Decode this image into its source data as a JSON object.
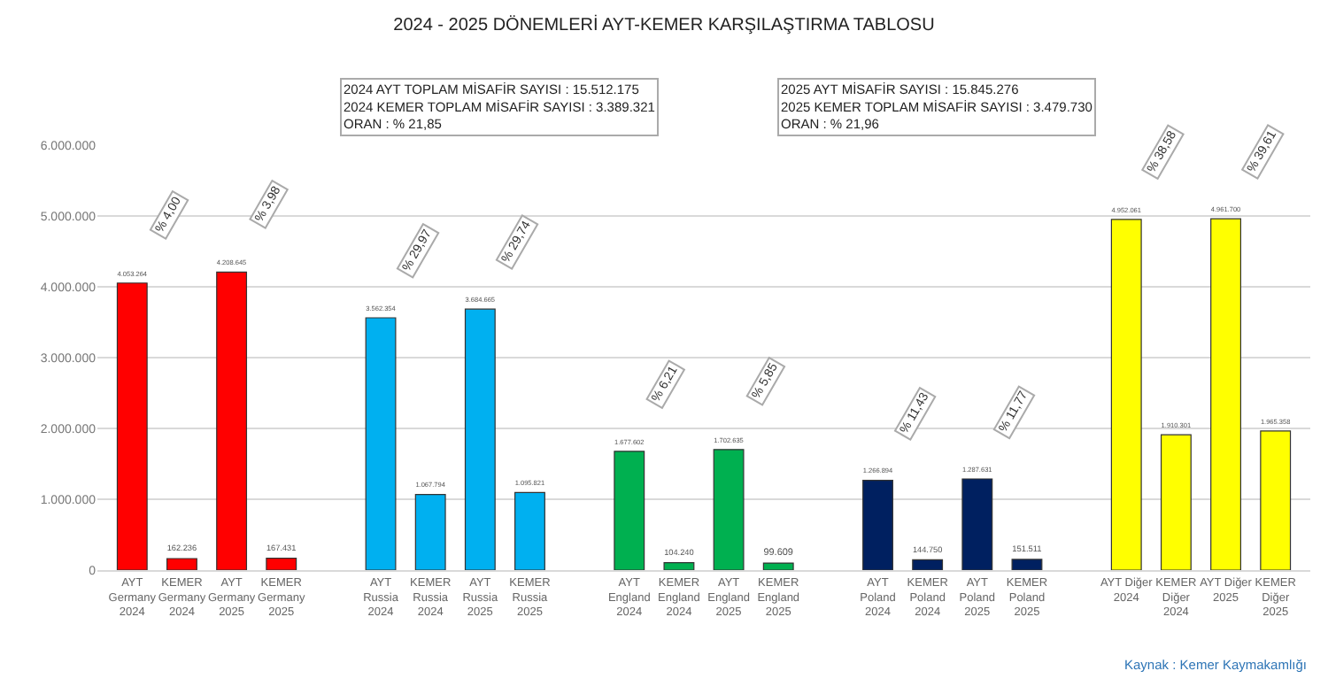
{
  "chart_data": {
    "type": "bar",
    "title": "2024 - 2025 DÖNEMLERİ AYT-KEMER KARŞILAŞTIRMA TABLOSU",
    "categories": [
      "AYT Germany 2024",
      "KEMER Germany 2024",
      "AYT Germany 2025",
      "KEMER Germany 2025",
      "AYT Russia 2024",
      "KEMER Russia 2024",
      "AYT Russia 2025",
      "KEMER Russia 2025",
      "AYT England 2024",
      "KEMER England 2024",
      "AYT England 2025",
      "KEMER England 2025",
      "AYT Poland 2024",
      "KEMER Poland 2024",
      "AYT Poland 2025",
      "KEMER Poland 2025",
      "AYT Diğer 2024",
      "KEMER Diğer 2024",
      "AYT Diğer 2025",
      "KEMER Diğer 2025"
    ],
    "values": [
      4053264,
      162236,
      4208645,
      167431,
      3562354,
      1067794,
      3684665,
      1095821,
      1677602,
      104240,
      1702635,
      99609,
      1266894,
      144750,
      1287631,
      151511,
      4952061,
      1910301,
      4961700,
      1965358
    ],
    "value_labels": [
      "4.053.264",
      "162.236",
      "4.208.645",
      "167.431",
      "3.562.354",
      "1.067.794",
      "3.684.665",
      "1.095.821",
      "1.677.602",
      "104.240",
      "1.702.635",
      "99.609",
      "1.266.894",
      "144.750",
      "1.287.631",
      "151.511",
      "4.952.061",
      "1.910.301",
      "4.961.700",
      "1.965.358"
    ],
    "colors": [
      "#ff0000",
      "#ff0000",
      "#ff0000",
      "#ff0000",
      "#00b0f0",
      "#00b0f0",
      "#00b0f0",
      "#00b0f0",
      "#00b050",
      "#00b050",
      "#00b050",
      "#00b050",
      "#002060",
      "#002060",
      "#002060",
      "#002060",
      "#ffff00",
      "#ffff00",
      "#ffff00",
      "#ffff00"
    ],
    "ylim": [
      0,
      6000000
    ],
    "yticks": [
      0,
      {
        "value": 1000000,
        "label": "1.000.000"
      },
      {
        "value": 2000000,
        "label": "2.000.000"
      },
      {
        "value": 3000000,
        "label": "3.000.000"
      },
      {
        "value": 4000000,
        "label": "4.000.000"
      },
      {
        "value": 5000000,
        "label": "5.000.000"
      },
      {
        "value": 6000000,
        "label": "6.000.000"
      }
    ],
    "grid": "y",
    "legend": false,
    "annotations": [
      "2024 AYT TOPLAM MİSAFİR SAYISI : 15.512.175\n2024 KEMER TOPLAM MİSAFİR SAYISI : 3.389.321\nORAN : % 21,85",
      "2025 AYT MİSAFİR SAYISI : 15.845.276\n2025 KEMER TOPLAM MİSAFİR SAYISI : 3.479.730\nORAN : % 21,96",
      "% 4,00",
      "% 3,98",
      "% 29,97",
      "% 29,74",
      "% 6,21",
      "% 5,85",
      "% 11,43",
      "% 11,77",
      "% 38,58",
      "% 39,61",
      "Kaynak : Kemer Kaymakamlığı"
    ]
  }
}
